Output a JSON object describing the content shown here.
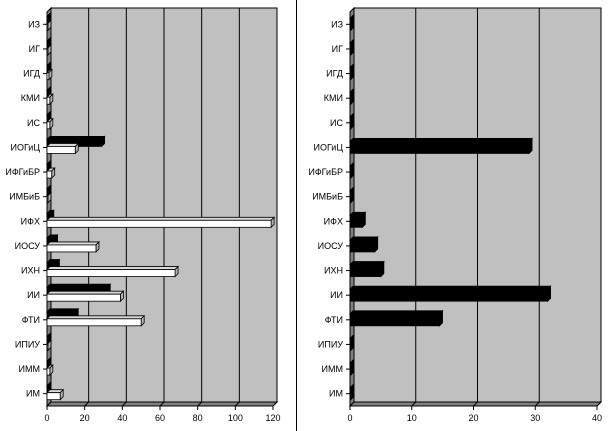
{
  "chart_data": [
    {
      "type": "bar",
      "orientation": "horizontal",
      "style": "3d",
      "categories": [
        "ИЗ",
        "ИГ",
        "ИГД",
        "КМИ",
        "ИС",
        "ИОГиЦ",
        "ИФГиБР",
        "ИМБиБ",
        "ИФХ",
        "ИОСУ",
        "ИХН",
        "ИИ",
        "ФТИ",
        "ИПИУ",
        "ИММ",
        "ИМ"
      ],
      "xlim": [
        0,
        120
      ],
      "xticks": [
        "0",
        "20",
        "40",
        "60",
        "80",
        "100",
        "120"
      ],
      "grid": true,
      "series": [
        {
          "color": "#000000",
          "values": [
            0.5,
            0.5,
            0.5,
            0.5,
            0.5,
            29,
            0.5,
            0.5,
            2,
            4,
            5,
            32,
            15,
            0.5,
            0.5,
            0.5
          ]
        },
        {
          "color": "#ffffff",
          "values": [
            0.5,
            0.5,
            1,
            1.5,
            1.5,
            15,
            2.5,
            0.5,
            119,
            26,
            68,
            39,
            50,
            0.5,
            1.5,
            7
          ]
        }
      ]
    },
    {
      "type": "bar",
      "orientation": "horizontal",
      "style": "3d",
      "categories": [
        "ИЗ",
        "ИГ",
        "ИГД",
        "КМИ",
        "ИС",
        "ИОГиЦ",
        "ИФГиБР",
        "ИМБиБ",
        "ИФХ",
        "ИОСУ",
        "ИХН",
        "ИИ",
        "ФТИ",
        "ИПИУ",
        "ИММ",
        "ИМ"
      ],
      "xlim": [
        0,
        40
      ],
      "xticks": [
        "0",
        "10",
        "20",
        "30",
        "40"
      ],
      "grid": true,
      "series": [
        {
          "color": "#000000",
          "values": [
            0,
            0,
            0,
            0,
            0,
            29,
            0,
            0,
            2,
            4,
            5,
            32,
            14.5,
            0,
            0,
            0
          ]
        }
      ]
    }
  ]
}
